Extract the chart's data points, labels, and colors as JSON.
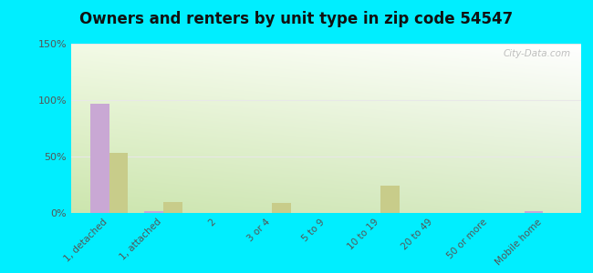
{
  "title": "Owners and renters by unit type in zip code 54547",
  "categories": [
    "1, detached",
    "1, attached",
    "2",
    "3 or 4",
    "5 to 9",
    "10 to 19",
    "20 to 49",
    "50 or more",
    "Mobile home"
  ],
  "owner_values": [
    97,
    2,
    0,
    0,
    0,
    0,
    0,
    0,
    2
  ],
  "renter_values": [
    53,
    10,
    0,
    9,
    0,
    24,
    0,
    0,
    0
  ],
  "owner_color": "#c9a8d4",
  "renter_color": "#c8cc8a",
  "background_color": "#00eeff",
  "ylim": [
    0,
    150
  ],
  "yticks": [
    0,
    50,
    100,
    150
  ],
  "ytick_labels": [
    "0%",
    "50%",
    "100%",
    "150%"
  ],
  "bar_width": 0.35,
  "watermark": "City-Data.com"
}
